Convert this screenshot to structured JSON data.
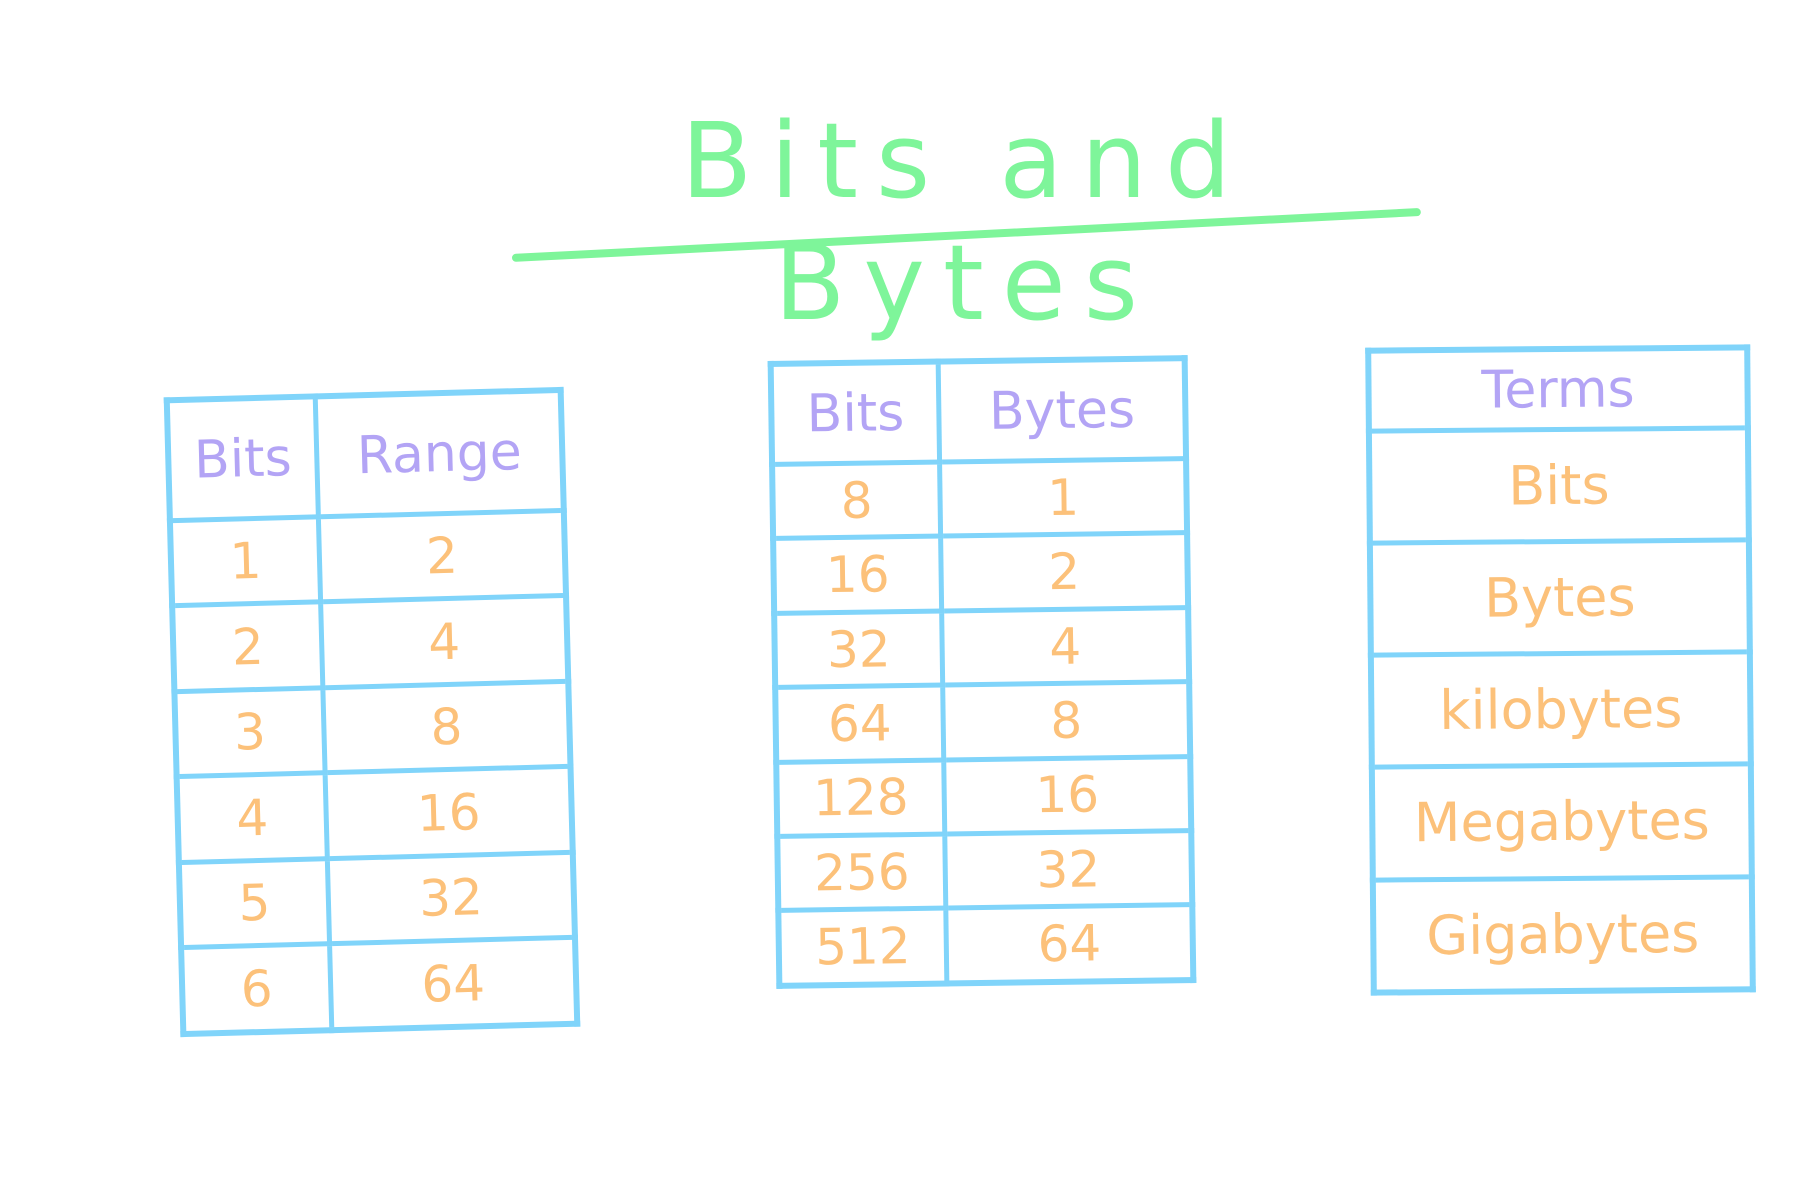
{
  "title": "Bits and Bytes",
  "colors": {
    "title": "#7ef59a",
    "lines": "#80d4fa",
    "headers": "#b3a4f5",
    "values": "#fcc17a"
  },
  "range_table": {
    "headers": [
      "Bits",
      "Range"
    ],
    "rows": [
      [
        "1",
        "2"
      ],
      [
        "2",
        "4"
      ],
      [
        "3",
        "8"
      ],
      [
        "4",
        "16"
      ],
      [
        "5",
        "32"
      ],
      [
        "6",
        "64"
      ]
    ]
  },
  "bytes_table": {
    "headers": [
      "Bits",
      "Bytes"
    ],
    "rows": [
      [
        "8",
        "1"
      ],
      [
        "16",
        "2"
      ],
      [
        "32",
        "4"
      ],
      [
        "64",
        "8"
      ],
      [
        "128",
        "16"
      ],
      [
        "256",
        "32"
      ],
      [
        "512",
        "64"
      ]
    ]
  },
  "terms_table": {
    "header": "Terms",
    "rows": [
      "Bits",
      "Bytes",
      "kilobytes",
      "Megabytes",
      "Gigabytes"
    ]
  }
}
